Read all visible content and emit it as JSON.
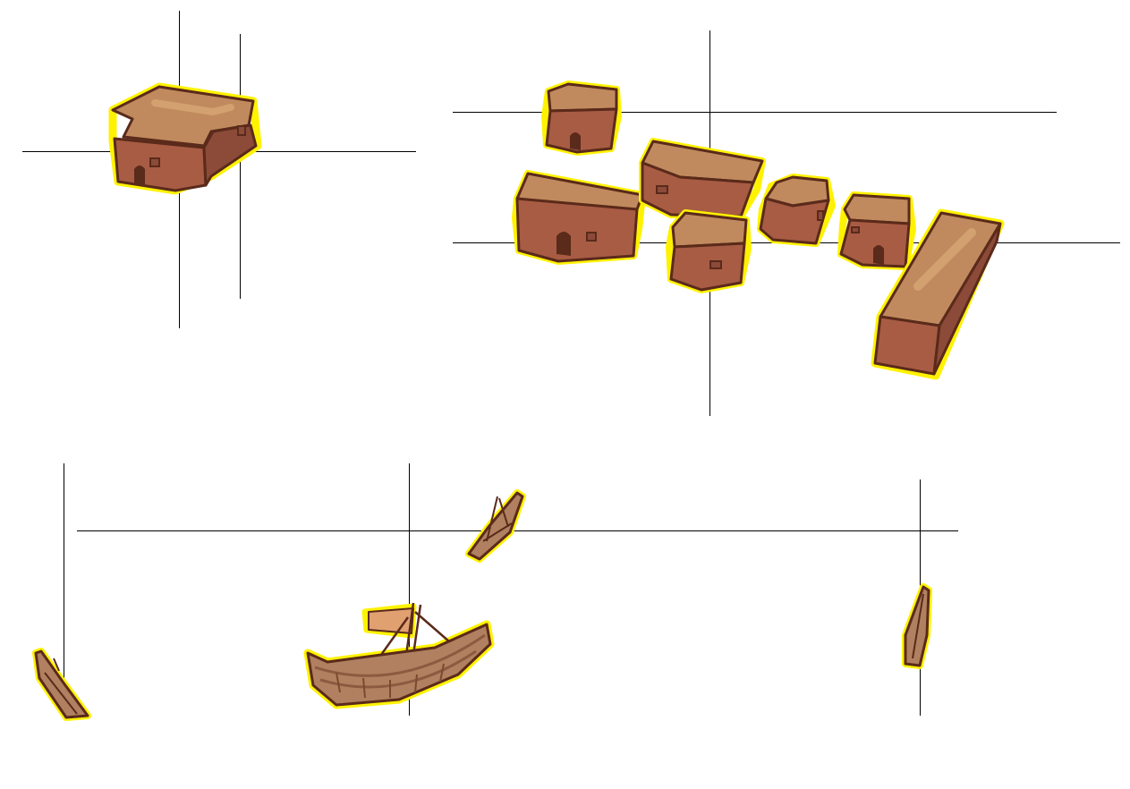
{
  "sheet": {
    "background": "#ffffff",
    "guide_color": "#000000",
    "palette": {
      "outline_glow": "#fff200",
      "ink": "#5a2a1a",
      "roof": "#c08a5e",
      "roof_light": "#d3a070",
      "wall": "#a85c44",
      "wall_dark": "#8c4a38",
      "reed": "#b08060",
      "sail": "#e0a070"
    }
  },
  "sprites": [
    {
      "name": "l-shaped-adobe-house",
      "kind": "building"
    },
    {
      "name": "small-hut-with-door",
      "kind": "building"
    },
    {
      "name": "long-house-with-door",
      "kind": "building"
    },
    {
      "name": "wide-house-with-window",
      "kind": "building"
    },
    {
      "name": "square-house-with-window",
      "kind": "building"
    },
    {
      "name": "rounded-block-with-window",
      "kind": "building"
    },
    {
      "name": "small-hut-right",
      "kind": "building"
    },
    {
      "name": "long-block",
      "kind": "building"
    },
    {
      "name": "small-reed-boat-left",
      "kind": "boat"
    },
    {
      "name": "reed-boat-with-sail",
      "kind": "boat"
    },
    {
      "name": "small-reed-boat-top",
      "kind": "boat"
    },
    {
      "name": "small-reed-boat-right",
      "kind": "boat"
    }
  ]
}
